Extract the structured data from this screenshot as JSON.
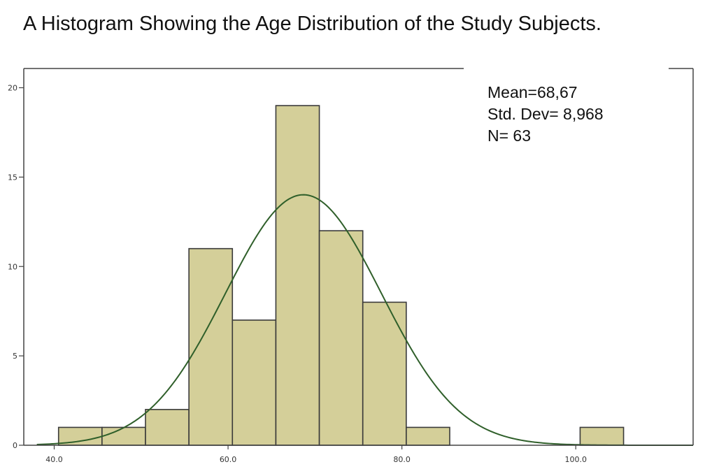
{
  "chart_data": {
    "type": "bar",
    "title": "A Histogram Showing the Age Distribution of the Study Subjects.",
    "xlabel": "",
    "ylabel": "",
    "bins": [
      {
        "start": 40.5,
        "end": 45.5,
        "count": 1
      },
      {
        "start": 45.5,
        "end": 50.5,
        "count": 1
      },
      {
        "start": 50.5,
        "end": 55.5,
        "count": 2
      },
      {
        "start": 55.5,
        "end": 60.5,
        "count": 11
      },
      {
        "start": 60.5,
        "end": 65.5,
        "count": 7
      },
      {
        "start": 65.5,
        "end": 70.5,
        "count": 19
      },
      {
        "start": 70.5,
        "end": 75.5,
        "count": 12
      },
      {
        "start": 75.5,
        "end": 80.5,
        "count": 8
      },
      {
        "start": 80.5,
        "end": 85.5,
        "count": 1
      },
      {
        "start": 100.5,
        "end": 105.5,
        "count": 1
      }
    ],
    "xlim": [
      36.5,
      113.5
    ],
    "ylim": [
      0,
      21
    ],
    "x_ticks": [
      40,
      60,
      80,
      100
    ],
    "x_tick_labels": [
      "40.0",
      "60.0",
      "80.0",
      "100.0"
    ],
    "y_ticks": [
      0,
      5,
      10,
      15,
      20
    ],
    "y_tick_labels": [
      "0",
      "5",
      "10",
      "15",
      "20"
    ],
    "normal_curve": {
      "mean": 68.67,
      "std_dev": 8.968,
      "n": 63,
      "bin_width": 5
    },
    "stats_legend": {
      "placement": "top-right",
      "lines": [
        "Mean=68,67",
        "Std. Dev= 8,968",
        "N= 63"
      ]
    },
    "colors": {
      "bar_fill": "#d4cf99",
      "bar_stroke": "#3a3a3a",
      "curve": "#2f5f2a",
      "axis": "#444444"
    },
    "grid": false
  }
}
